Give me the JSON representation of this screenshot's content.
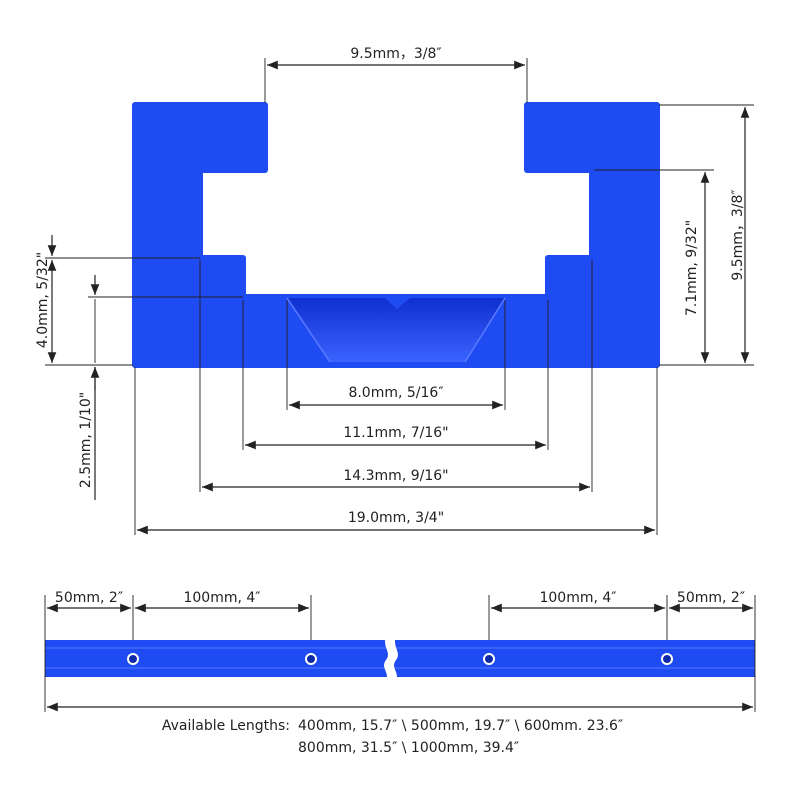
{
  "profile_dimensions": {
    "top_slot": "9.5mm，3/8″",
    "inner_height": "7.1mm, 9/32\"",
    "total_height": "9.5mm，3/8″",
    "lip_height": "4.0mm, 5/32\"",
    "base_thickness": "2.5mm, 1/10\"",
    "groove_width": "8.0mm, 5/16″",
    "floor_width": "11.1mm, 7/16\"",
    "channel_width": "14.3mm, 9/16\"",
    "total_width": "19.0mm, 3/4\""
  },
  "rail_dimensions": {
    "left_end": "50mm, 2″",
    "left_spacing": "100mm, 4″",
    "right_spacing": "100mm, 4″",
    "right_end": "50mm, 2″"
  },
  "available_lengths": {
    "title": "Available Lengths:",
    "lines": [
      "400mm, 15.7″ \\ 500mm, 19.7″ \\ 600mm. 23.6″",
      "800mm, 31.5″ \\ 1000mm, 39.4″"
    ]
  }
}
